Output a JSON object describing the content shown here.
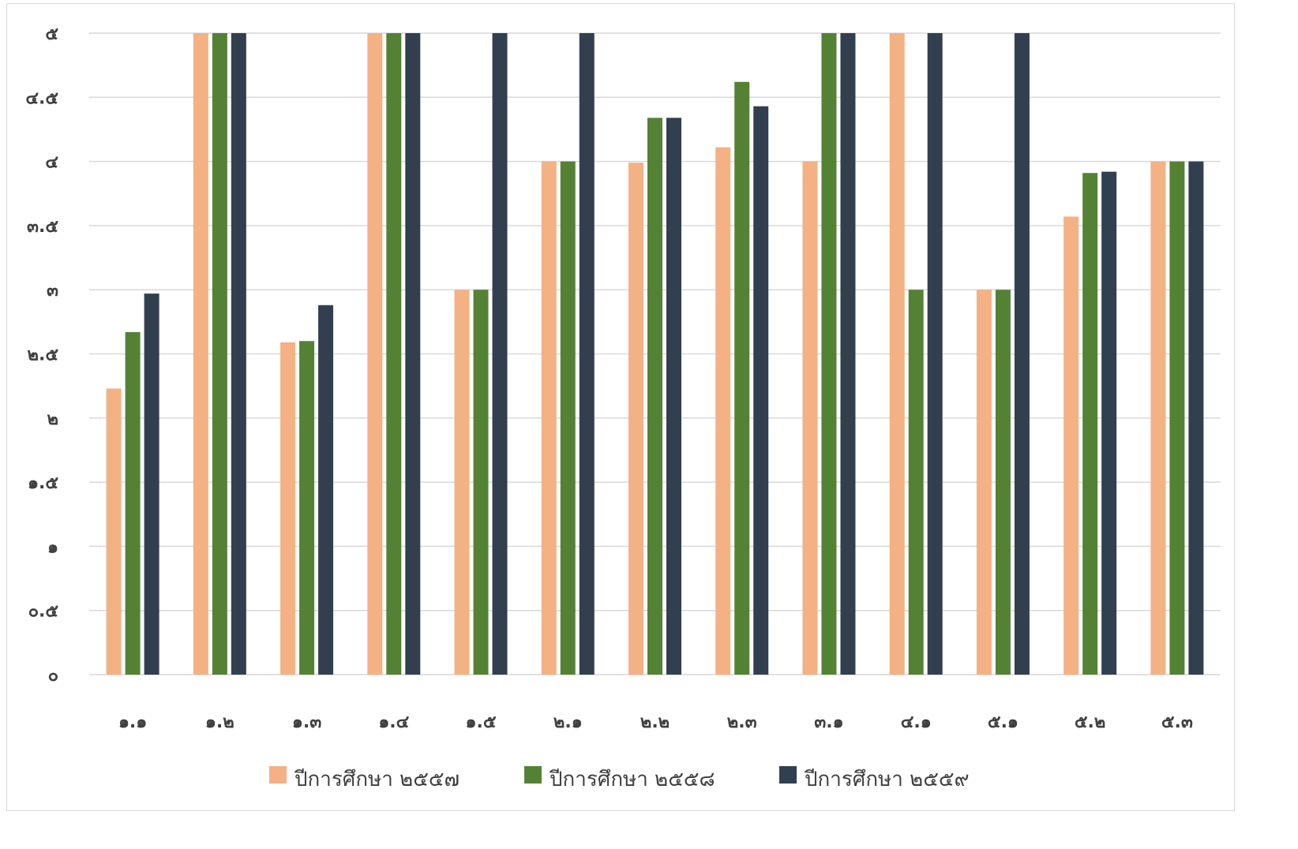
{
  "chart_data": {
    "type": "bar",
    "title": "",
    "xlabel": "",
    "ylabel": "",
    "ylim": [
      0,
      5
    ],
    "yticks": [
      0,
      0.5,
      1,
      1.5,
      2,
      2.5,
      3,
      3.5,
      4,
      4.5,
      5
    ],
    "ytick_labels": [
      "๐",
      "๐.๕",
      "๑",
      "๑.๕",
      "๒",
      "๒.๕",
      "๓",
      "๓.๕",
      "๔",
      "๔.๕",
      "๕"
    ],
    "categories": [
      "๑.๑",
      "๑.๒",
      "๑.๓",
      "๑.๔",
      "๑.๕",
      "๒.๑",
      "๒.๒",
      "๒.๓",
      "๓.๑",
      "๔.๑",
      "๕.๑",
      "๕.๒",
      "๕.๓"
    ],
    "series": [
      {
        "name": "ปีการศึกษา ๒๕๕๗",
        "color": "#F4B183",
        "values": [
          2.23,
          5,
          2.59,
          5,
          3,
          4,
          3.99,
          4.11,
          4,
          5,
          3,
          3.57,
          4
        ]
      },
      {
        "name": "ปีการศึกษา ๒๕๕๘",
        "color": "#548235",
        "values": [
          2.67,
          5,
          2.6,
          5,
          3,
          4,
          4.34,
          4.62,
          5,
          3,
          3,
          3.91,
          4
        ]
      },
      {
        "name": "ปีการศึกษา ๒๕๕๙",
        "color": "#323F4F",
        "values": [
          2.97,
          5,
          2.88,
          5,
          5,
          5,
          4.34,
          4.43,
          5,
          5,
          5,
          3.92,
          4
        ]
      }
    ],
    "grid": true,
    "legend_position": "bottom"
  },
  "colors": {
    "gridline": "#D9D9D9",
    "axis_text": "#404040",
    "border": "#D9D9D9"
  }
}
